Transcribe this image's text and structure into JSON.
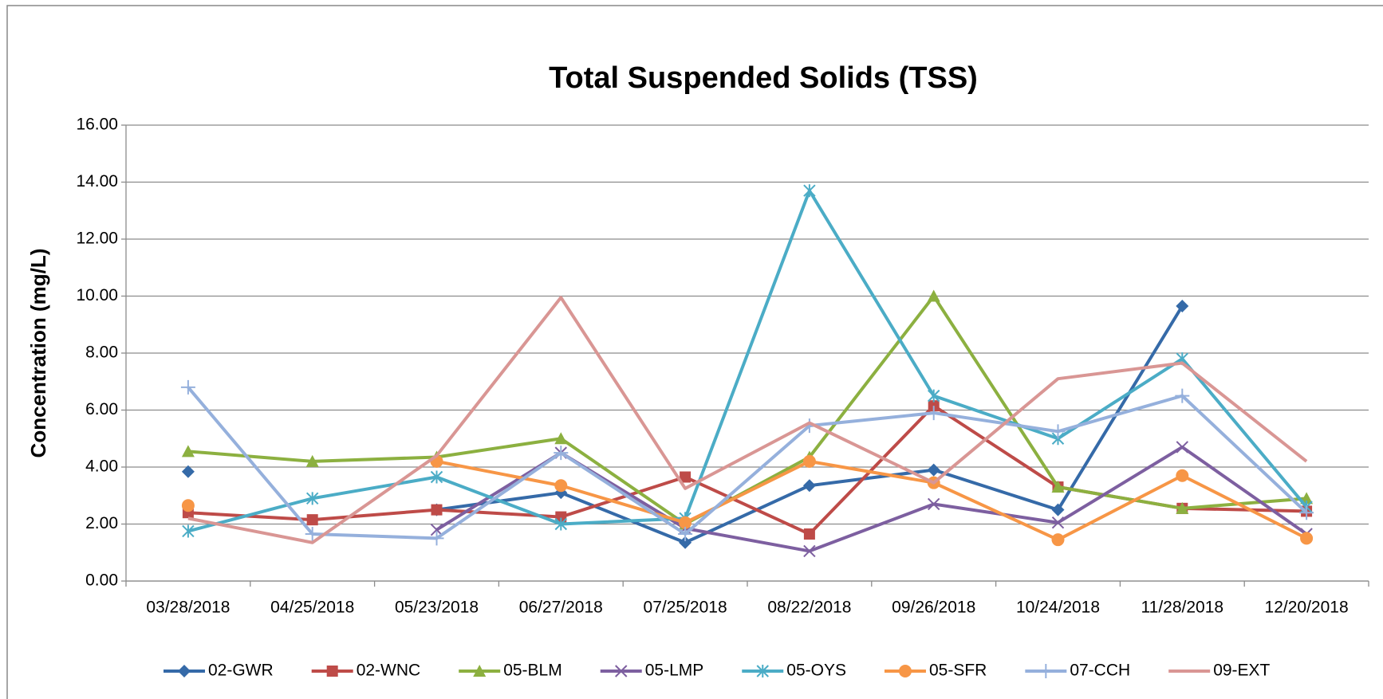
{
  "chart_data": {
    "type": "line",
    "title": "Total Suspended Solids (TSS)",
    "y_label": "Concentration (mg/L)",
    "categories": [
      "03/28/2018",
      "04/25/2018",
      "05/23/2018",
      "06/27/2018",
      "07/25/2018",
      "08/22/2018",
      "09/26/2018",
      "10/24/2018",
      "11/28/2018",
      "12/20/2018"
    ],
    "series": [
      {
        "name": "02-GWR",
        "color": "#356aa8",
        "marker": "diamond",
        "values": [
          3.84,
          null,
          2.5,
          3.1,
          1.35,
          3.35,
          3.9,
          2.5,
          9.65,
          null
        ]
      },
      {
        "name": "02-WNC",
        "color": "#be4b48",
        "marker": "square",
        "values": [
          2.4,
          2.15,
          2.5,
          2.25,
          3.65,
          1.65,
          6.15,
          3.3,
          2.55,
          2.45
        ]
      },
      {
        "name": "05-BLM",
        "color": "#8cb040",
        "marker": "triangle",
        "values": [
          4.55,
          4.2,
          4.35,
          5.0,
          2.0,
          4.35,
          10.0,
          3.3,
          2.55,
          2.9
        ]
      },
      {
        "name": "05-LMP",
        "color": "#7d5fa0",
        "marker": "x",
        "values": [
          null,
          null,
          1.8,
          4.5,
          1.85,
          1.05,
          2.7,
          2.05,
          4.7,
          1.65
        ]
      },
      {
        "name": "05-OYS",
        "color": "#4bacc6",
        "marker": "star",
        "values": [
          1.75,
          2.9,
          3.65,
          2.0,
          2.2,
          13.7,
          6.5,
          5.0,
          7.8,
          2.6
        ]
      },
      {
        "name": "05-SFR",
        "color": "#f79646",
        "marker": "circle",
        "values": [
          2.65,
          null,
          4.2,
          3.35,
          2.05,
          4.2,
          3.45,
          1.45,
          3.7,
          1.5
        ]
      },
      {
        "name": "07-CCH",
        "color": "#95b0dc",
        "marker": "plus",
        "values": [
          6.8,
          1.65,
          1.5,
          4.5,
          1.65,
          5.45,
          5.9,
          5.25,
          6.5,
          2.4
        ]
      },
      {
        "name": "09-EXT",
        "color": "#d99694",
        "marker": "none",
        "values": [
          2.2,
          1.35,
          4.4,
          9.95,
          3.25,
          5.55,
          3.45,
          7.1,
          7.65,
          4.2
        ]
      }
    ],
    "ylim": [
      0,
      16
    ],
    "yticks": [
      {
        "value": 0,
        "label": "0.00"
      },
      {
        "value": 2,
        "label": "2.00"
      },
      {
        "value": 4,
        "label": "4.00"
      },
      {
        "value": 6,
        "label": "6.00"
      },
      {
        "value": 8,
        "label": "8.00"
      },
      {
        "value": 10,
        "label": "10.00"
      },
      {
        "value": 12,
        "label": "12.00"
      },
      {
        "value": 14,
        "label": "14.00"
      },
      {
        "value": 16,
        "label": "16.00"
      }
    ],
    "grid": true,
    "legend": "bottom"
  }
}
